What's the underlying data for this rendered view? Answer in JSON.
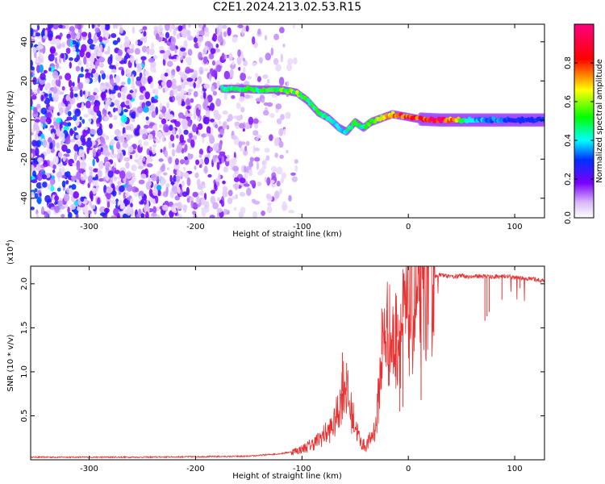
{
  "title": "C2E1.2024.213.02.53.R15",
  "chart_data": [
    {
      "type": "heatmap",
      "xlabel": "Height of straight line (km)",
      "ylabel": "Frequency (Hz)",
      "xlim": [
        -355,
        128
      ],
      "ylim": [
        -50,
        49
      ],
      "xticks": [
        -300,
        -200,
        -100,
        0,
        100
      ],
      "yticks": [
        -40,
        -20,
        0,
        20,
        40
      ],
      "colorbar": {
        "label": "Normalized spectral amplitude",
        "range": [
          0.0,
          1.0
        ],
        "ticks": [
          0.0,
          0.2,
          0.4,
          0.6,
          0.8
        ]
      },
      "noise_region_x": [
        -355,
        -105
      ],
      "signal_track": {
        "x": [
          -175,
          -160,
          -140,
          -120,
          -105,
          -95,
          -85,
          -75,
          -65,
          -58,
          -50,
          -42,
          -35,
          -25,
          -15,
          -5,
          10,
          30,
          60,
          100,
          128
        ],
        "y": [
          16,
          16,
          15.5,
          15.5,
          14,
          10,
          4,
          1,
          -4,
          -6,
          -1,
          -4,
          -1,
          1,
          3,
          2,
          0.5,
          0,
          0,
          0,
          0
        ],
        "peak_amplitude": [
          0.45,
          0.5,
          0.5,
          0.55,
          0.6,
          0.5,
          0.5,
          0.45,
          0.4,
          0.45,
          0.5,
          0.45,
          0.55,
          0.65,
          0.75,
          0.85,
          0.9,
          0.95,
          0.4,
          0.3,
          0.3
        ]
      }
    },
    {
      "type": "line",
      "xlabel": "Height of straight line (km)",
      "ylabel": "SNR (10 * v/v)",
      "ylabel_scale": "(x10",
      "ylabel_scale_exp": "4",
      "ylabel_scale_close": ")",
      "xlim": [
        -355,
        128
      ],
      "ylim": [
        0,
        22000
      ],
      "xticks": [
        -300,
        -200,
        -100,
        0,
        100
      ],
      "yticks": [
        5000,
        10000,
        15000,
        20000
      ],
      "ytick_labels": [
        "0.5",
        "1.0",
        "1.5",
        "2.0"
      ],
      "series": [
        {
          "color": "#e83030",
          "x": [
            -355,
            -300,
            -250,
            -200,
            -150,
            -120,
            -110,
            -100,
            -95,
            -90,
            -85,
            -80,
            -75,
            -70,
            -65,
            -60,
            -55,
            -50,
            -45,
            -40,
            -35,
            -30,
            -25,
            -20,
            -15,
            -10,
            -5,
            0,
            5,
            10,
            15,
            20,
            25,
            30,
            40,
            50,
            60,
            70,
            80,
            90,
            100,
            110,
            120,
            128
          ],
          "y": [
            300,
            300,
            300,
            350,
            400,
            700,
            900,
            1200,
            1500,
            1800,
            2200,
            2800,
            3200,
            4000,
            6000,
            9000,
            6000,
            4000,
            2000,
            1500,
            2500,
            4000,
            12000,
            15000,
            13000,
            14000,
            15500,
            16500,
            17000,
            18000,
            19500,
            20500,
            20800,
            21000,
            20800,
            20900,
            20800,
            20900,
            20800,
            20900,
            20700,
            20600,
            20500,
            20300
          ],
          "spikes": [
            [
              -62,
              12200
            ],
            [
              -58,
              11000
            ],
            [
              -25,
              17200
            ],
            [
              -20,
              17000
            ],
            [
              -10,
              16500
            ],
            [
              -2,
              17800
            ],
            [
              10,
              21700
            ],
            [
              -8,
              5500
            ],
            [
              -5,
              6000
            ],
            [
              12,
              6800
            ],
            [
              72,
              15800
            ],
            [
              74,
              16300
            ],
            [
              76,
              16800
            ],
            [
              88,
              18200
            ],
            [
              105,
              19500
            ]
          ]
        }
      ]
    }
  ]
}
